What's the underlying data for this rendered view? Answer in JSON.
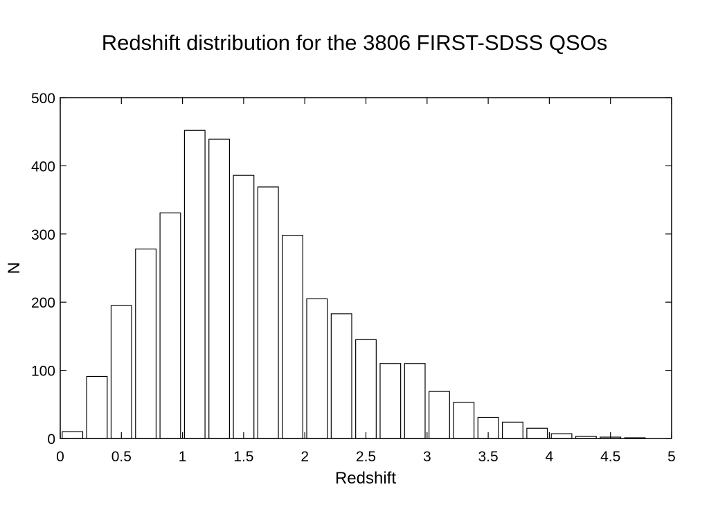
{
  "chart_data": {
    "type": "bar",
    "title": "Redshift distribution for the 3806 FIRST-SDSS QSOs",
    "xlabel": "Redshift",
    "ylabel": "N",
    "xlim": [
      0,
      5
    ],
    "ylim": [
      0,
      500
    ],
    "xticks": [
      "0",
      "0.5",
      "1",
      "1.5",
      "2",
      "2.5",
      "3",
      "3.5",
      "4",
      "4.5",
      "5"
    ],
    "yticks": [
      "0",
      "100",
      "200",
      "300",
      "400",
      "500"
    ],
    "bin_width": 0.2,
    "bin_centers": [
      0.1,
      0.3,
      0.5,
      0.7,
      0.9,
      1.1,
      1.3,
      1.5,
      1.7,
      1.9,
      2.1,
      2.3,
      2.5,
      2.7,
      2.9,
      3.1,
      3.3,
      3.5,
      3.7,
      3.9,
      4.1,
      4.3,
      4.5,
      4.7
    ],
    "values": [
      10,
      91,
      195,
      278,
      331,
      452,
      439,
      386,
      369,
      298,
      205,
      183,
      145,
      110,
      110,
      69,
      53,
      31,
      24,
      15,
      7,
      3,
      2,
      1
    ],
    "grid": false,
    "bar_fill": "#ffffff",
    "bar_stroke": "#000000"
  }
}
